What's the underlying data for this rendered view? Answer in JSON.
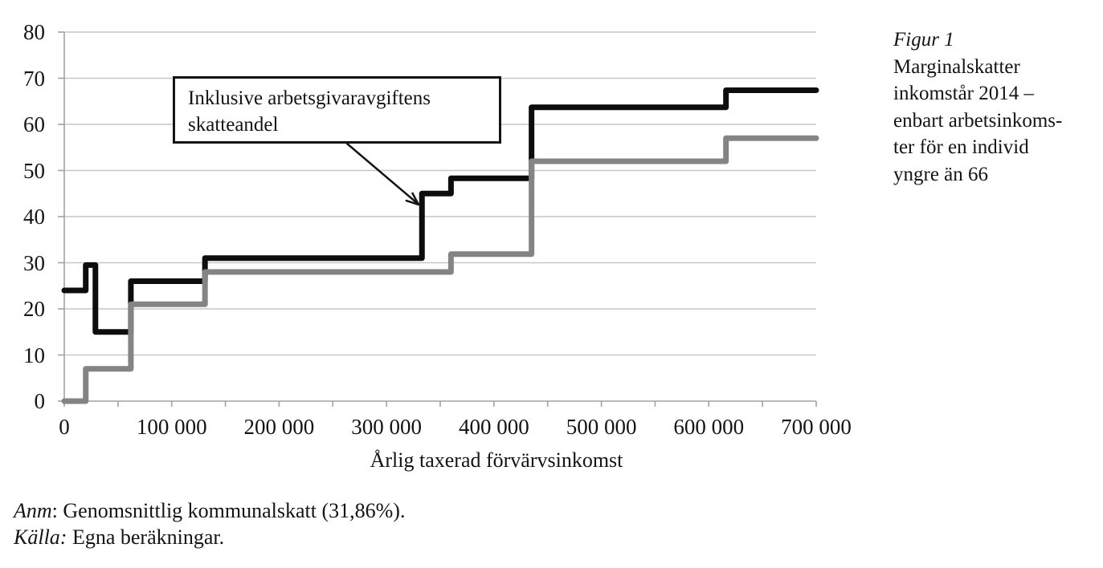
{
  "figure": {
    "caption": {
      "title": "Figur 1",
      "lines": [
        "Marginalskatter",
        "inkomstår 2014 –",
        "enbart arbetsinkoms-",
        "ter för en individ",
        "yngre än 66"
      ]
    },
    "notes": [
      {
        "label": "Anm",
        "text": ": Genomsnittlig kommunalskatt (31,86%)."
      },
      {
        "label": "Källa:",
        "text": " Egna beräkningar."
      }
    ]
  },
  "annotation": {
    "text": "Inklusive arbetsgivaravgiftens skatteandel"
  },
  "chart_data": {
    "type": "line",
    "subtype": "step",
    "title": "",
    "xlabel": "Årlig taxerad förvärvsinkomst",
    "ylabel": "",
    "x_min": 0,
    "x_max": 700000,
    "y_min": 0,
    "y_max": 80,
    "y_tick_step": 10,
    "x_tick_label_step": 100000,
    "x_minor_tick_step": 50000,
    "x_tick_labels": [
      "0",
      "100 000",
      "200 000",
      "300 000",
      "400 000",
      "500 000",
      "600 000",
      "700 000"
    ],
    "y_tick_labels": [
      "0",
      "10",
      "20",
      "30",
      "40",
      "50",
      "60",
      "70",
      "80"
    ],
    "grid": "horizontal",
    "legend_position": "none",
    "colors": {
      "grid": "#c4c8c7",
      "axis": "#a0a4a3",
      "text": "#141414",
      "arrow": "#141414"
    },
    "series": [
      {
        "id": "incl-employer-contribution-line",
        "label": "Inklusive arbetsgivaravgiftens skatteandel",
        "color": "#0d0d0d",
        "segments": [
          {
            "from": 0,
            "to": 20000,
            "rate": 24
          },
          {
            "from": 20000,
            "to": 29000,
            "rate": 29.5
          },
          {
            "from": 29000,
            "to": 62000,
            "rate": 15
          },
          {
            "from": 62000,
            "to": 131000,
            "rate": 26
          },
          {
            "from": 131000,
            "to": 333000,
            "rate": 31
          },
          {
            "from": 333000,
            "to": 360000,
            "rate": 45
          },
          {
            "from": 360000,
            "to": 435000,
            "rate": 48.3
          },
          {
            "from": 435000,
            "to": 616000,
            "rate": 63.7
          },
          {
            "from": 616000,
            "to": 700000,
            "rate": 67.4
          }
        ]
      },
      {
        "id": "excl-employer-contribution-line",
        "label": "",
        "color": "#848484",
        "segments": [
          {
            "from": 0,
            "to": 20000,
            "rate": 0
          },
          {
            "from": 20000,
            "to": 62000,
            "rate": 7
          },
          {
            "from": 62000,
            "to": 131000,
            "rate": 21
          },
          {
            "from": 131000,
            "to": 360000,
            "rate": 28
          },
          {
            "from": 360000,
            "to": 435000,
            "rate": 31.86
          },
          {
            "from": 435000,
            "to": 616000,
            "rate": 52
          },
          {
            "from": 616000,
            "to": 700000,
            "rate": 57
          }
        ]
      }
    ]
  }
}
